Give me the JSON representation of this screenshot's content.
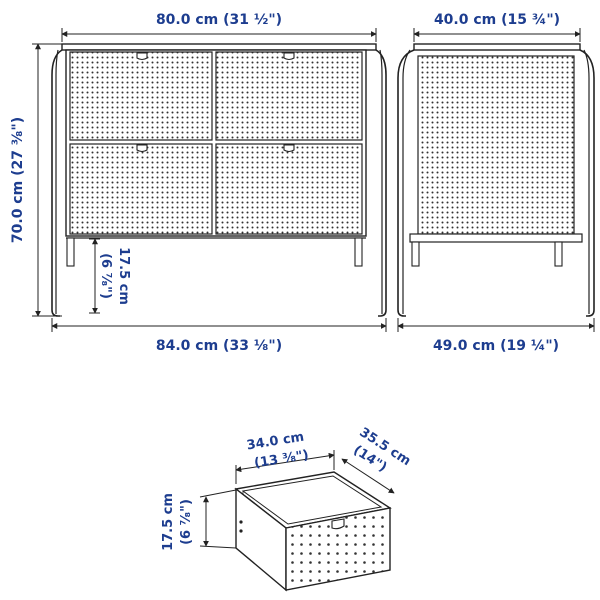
{
  "front_view": {
    "top_width": "80.0 cm (31 ½\")",
    "height": "70.0 cm (27 ³⁄₈\")",
    "leg_height_cm": "17.5 cm",
    "leg_height_in": "(6 ⁷⁄₈\")",
    "total_width": "84.0 cm (33 ¹⁄₈\")"
  },
  "side_view": {
    "top_depth": "40.0 cm (15 ¾\")",
    "total_depth": "49.0 cm (19 ¼\")"
  },
  "drawer": {
    "width_cm": "34.0 cm",
    "width_in": "(13 ³⁄₈\")",
    "depth_cm": "35.5 cm",
    "depth_in": "(14\")",
    "height_cm": "17.5 cm",
    "height_in": "(6 ⁷⁄₈\")"
  },
  "colors": {
    "dimension_text": "#1d3d8f",
    "line": "#222222"
  }
}
